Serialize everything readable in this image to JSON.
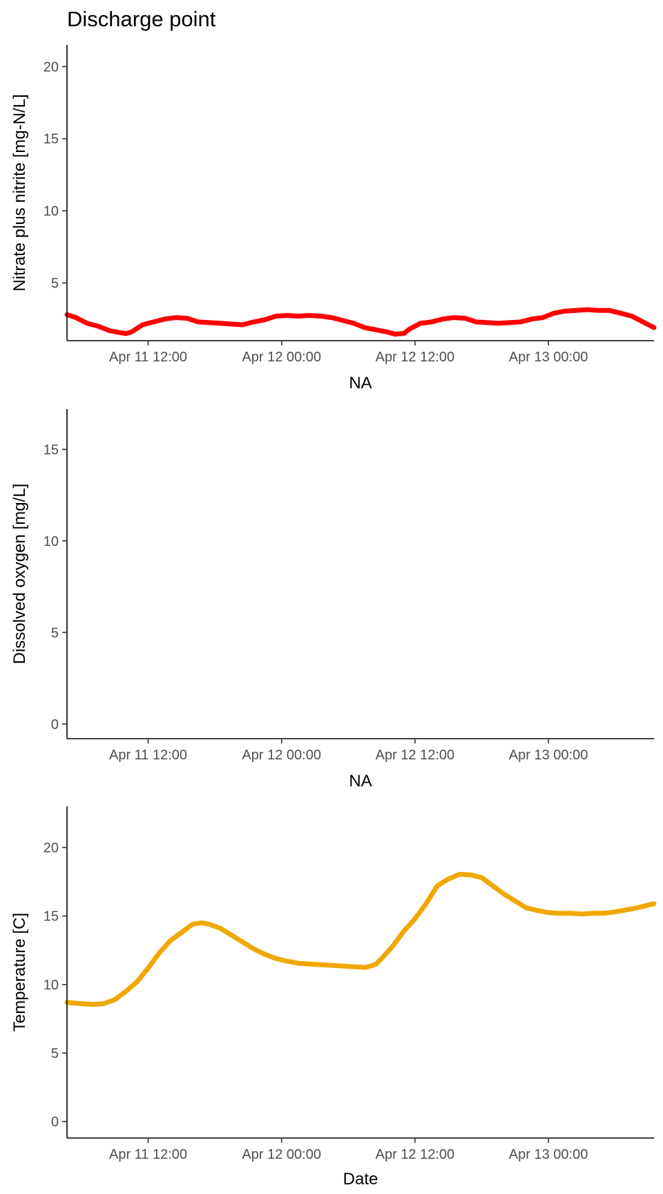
{
  "page": {
    "title": "Discharge point"
  },
  "chart_data": [
    {
      "type": "line",
      "xlabel": "NA",
      "ylabel": "Nitrate plus nitrite [mg-N/L]",
      "x_ticks": [
        "Apr 11 12:00",
        "Apr 12 00:00",
        "Apr 12 12:00",
        "Apr 13 00:00"
      ],
      "x_tick_hours": [
        12,
        24,
        36,
        48
      ],
      "xlim_hours": [
        4.7,
        57.5
      ],
      "ylim": [
        1.0,
        21.5
      ],
      "y_ticks": [
        5,
        10,
        15,
        20
      ],
      "grid": false,
      "color": "#ff0000",
      "series": [
        {
          "x_hours": [
            4.7,
            5.5,
            6.5,
            7.5,
            8.5,
            9.5,
            10.0,
            10.5,
            11.5,
            12.5,
            13.5,
            14.5,
            15.5,
            16.5,
            17.5,
            18.5,
            19.5,
            20.5,
            21.5,
            22.5,
            23.5,
            24.5,
            25.5,
            26.5,
            27.5,
            28.5,
            29.5,
            30.5,
            31.5,
            32.5,
            33.5,
            34.2,
            35.0,
            35.5,
            36.5,
            37.5,
            38.5,
            39.5,
            40.5,
            41.5,
            42.5,
            43.5,
            44.5,
            45.5,
            46.5,
            47.5,
            48.5,
            49.5,
            50.5,
            51.5,
            52.5,
            53.5,
            54.5,
            55.5,
            56.5,
            57.5
          ],
          "values": [
            2.8,
            2.6,
            2.2,
            2.0,
            1.7,
            1.55,
            1.5,
            1.6,
            2.1,
            2.3,
            2.5,
            2.6,
            2.55,
            2.3,
            2.25,
            2.2,
            2.15,
            2.1,
            2.3,
            2.45,
            2.7,
            2.75,
            2.7,
            2.75,
            2.7,
            2.6,
            2.4,
            2.2,
            1.9,
            1.75,
            1.6,
            1.45,
            1.5,
            1.8,
            2.2,
            2.3,
            2.5,
            2.6,
            2.55,
            2.3,
            2.25,
            2.2,
            2.25,
            2.3,
            2.5,
            2.6,
            2.9,
            3.05,
            3.1,
            3.15,
            3.1,
            3.1,
            2.9,
            2.7,
            2.3,
            1.9
          ]
        }
      ]
    },
    {
      "type": "line",
      "xlabel": "NA",
      "ylabel": "Dissolved oxygen [mg/L]",
      "x_ticks": [
        "Apr 11 12:00",
        "Apr 12 00:00",
        "Apr 12 12:00",
        "Apr 13 00:00"
      ],
      "x_tick_hours": [
        12,
        24,
        36,
        48
      ],
      "xlim_hours": [
        4.7,
        57.5
      ],
      "ylim": [
        -0.8,
        17.2
      ],
      "y_ticks": [
        0,
        5,
        10,
        15
      ],
      "grid": false,
      "series": []
    },
    {
      "type": "line",
      "xlabel": "Date",
      "ylabel": "Temperature [C]",
      "x_ticks": [
        "Apr 11 12:00",
        "Apr 12 00:00",
        "Apr 12 12:00",
        "Apr 13 00:00"
      ],
      "x_tick_hours": [
        12,
        24,
        36,
        48
      ],
      "xlim_hours": [
        4.7,
        57.5
      ],
      "ylim": [
        -1.2,
        23.0
      ],
      "y_ticks": [
        0,
        5,
        10,
        15,
        20
      ],
      "grid": false,
      "color": "#f0a800",
      "series": [
        {
          "x_hours": [
            4.7,
            6.0,
            7.0,
            8.0,
            9.0,
            10.0,
            11.0,
            12.0,
            13.0,
            14.0,
            15.0,
            16.0,
            16.8,
            17.5,
            18.5,
            19.5,
            20.5,
            21.5,
            22.5,
            23.5,
            24.5,
            25.5,
            26.5,
            27.5,
            28.5,
            29.5,
            30.5,
            31.5,
            32.0,
            32.5,
            33.0,
            34.0,
            35.0,
            36.0,
            37.0,
            38.0,
            39.0,
            40.0,
            41.0,
            42.0,
            43.0,
            44.0,
            45.0,
            46.0,
            47.0,
            48.0,
            49.0,
            50.0,
            51.0,
            52.0,
            53.0,
            54.0,
            55.0,
            56.0,
            57.5
          ],
          "values": [
            8.7,
            8.6,
            8.55,
            8.6,
            8.9,
            9.5,
            10.2,
            11.2,
            12.3,
            13.2,
            13.8,
            14.4,
            14.5,
            14.4,
            14.1,
            13.6,
            13.1,
            12.6,
            12.2,
            11.9,
            11.7,
            11.55,
            11.5,
            11.45,
            11.4,
            11.35,
            11.3,
            11.25,
            11.35,
            11.5,
            11.9,
            12.8,
            13.9,
            14.8,
            15.9,
            17.2,
            17.7,
            18.05,
            18.0,
            17.8,
            17.2,
            16.6,
            16.1,
            15.6,
            15.4,
            15.25,
            15.2,
            15.2,
            15.15,
            15.2,
            15.2,
            15.3,
            15.45,
            15.6,
            15.9
          ]
        }
      ]
    }
  ]
}
